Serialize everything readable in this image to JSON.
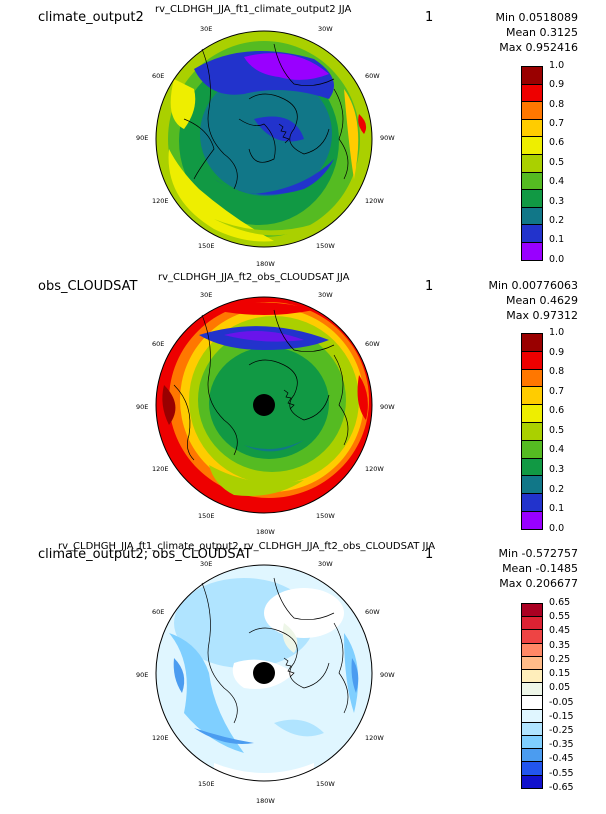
{
  "panels": [
    {
      "label": "climate_output2",
      "title": "rv_CLDHGH_JJA_ft1_climate_output2  JJA",
      "number": "1",
      "stats": {
        "min": "Min 0.0518089",
        "mean": "Mean 0.3125",
        "max": "Max 0.952416"
      },
      "lon_labels": [
        "30E",
        "30W",
        "60E",
        "60W",
        "90E",
        "90W",
        "120E",
        "120W",
        "150E",
        "150W",
        "180W"
      ],
      "colorbar": {
        "labels": [
          "1.0",
          "0.9",
          "0.8",
          "0.7",
          "0.6",
          "0.5",
          "0.4",
          "0.3",
          "0.2",
          "0.1",
          "0.0"
        ],
        "colors": [
          "#990000",
          "#ee0000",
          "#ff7700",
          "#ffcc00",
          "#eeee00",
          "#aad000",
          "#55bb22",
          "#119944",
          "#117788",
          "#2233cc",
          "#9900ff"
        ]
      }
    },
    {
      "label": "obs_CLOUDSAT",
      "title": "rv_CLDHGH_JJA_ft2_obs_CLOUDSAT  JJA",
      "number": "1",
      "stats": {
        "min": "Min 0.00776063",
        "mean": "Mean 0.4629",
        "max": "Max 0.97312"
      },
      "lon_labels": [
        "30E",
        "30W",
        "60E",
        "60W",
        "90E",
        "90W",
        "120E",
        "120W",
        "150E",
        "150W",
        "180W"
      ],
      "colorbar": {
        "labels": [
          "1.0",
          "0.9",
          "0.8",
          "0.7",
          "0.6",
          "0.5",
          "0.4",
          "0.3",
          "0.2",
          "0.1",
          "0.0"
        ],
        "colors": [
          "#990000",
          "#ee0000",
          "#ff7700",
          "#ffcc00",
          "#eeee00",
          "#aad000",
          "#55bb22",
          "#119944",
          "#117788",
          "#2233cc",
          "#9900ff"
        ]
      }
    },
    {
      "label": "climate_output2; obs_CLOUDSAT",
      "title": "rv_CLDHGH_JJA_ft1_climate_output2_rv_CLDHGH_JJA_ft2_obs_CLOUDSAT  JJA",
      "number": "1",
      "stats": {
        "min": "Min -0.572757",
        "mean": "Mean -0.1485",
        "max": "Max 0.206677"
      },
      "lon_labels": [
        "30E",
        "30W",
        "60E",
        "60W",
        "90E",
        "90W",
        "120E",
        "120W",
        "150E",
        "150W",
        "180W"
      ],
      "colorbar": {
        "labels": [
          "0.65",
          "0.55",
          "0.45",
          "0.35",
          "0.25",
          "0.15",
          "0.05",
          "-0.05",
          "-0.15",
          "-0.25",
          "-0.35",
          "-0.45",
          "-0.55",
          "-0.65"
        ],
        "colors": [
          "#aa0022",
          "#dd2233",
          "#ee4444",
          "#ff8866",
          "#ffbb88",
          "#ffeebb",
          "#eef6e8",
          "#ffffff",
          "#e0f6ff",
          "#b0e4ff",
          "#7fcfff",
          "#4b9cf0",
          "#2255ee",
          "#1111cc"
        ]
      }
    }
  ]
}
